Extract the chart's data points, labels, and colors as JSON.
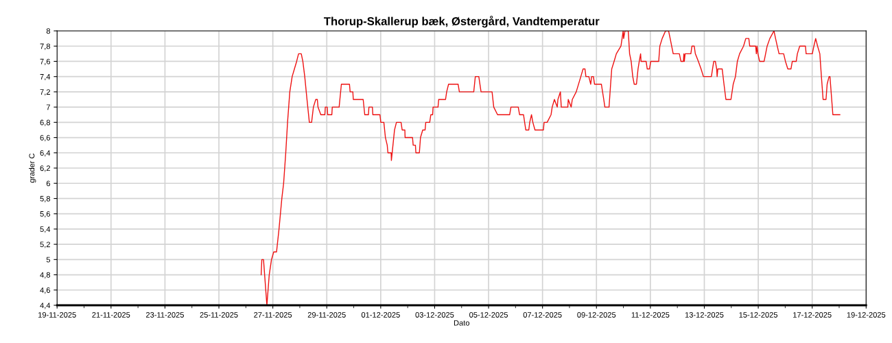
{
  "chart_data": {
    "type": "line",
    "title": "Thorup-Skallerup bæk, Østergård, Vandtemperatur",
    "xlabel": "Dato",
    "ylabel": "grader C",
    "x": [
      "2025-11-26T13:36",
      "2025-11-26T14:12",
      "2025-11-26T15:42",
      "2025-11-26T18:42",
      "2025-11-26T20:48",
      "2025-11-26T22:48",
      "2025-11-27T00:48",
      "2025-11-27T03:18",
      "2025-11-27T05:30",
      "2025-11-27T08:00",
      "2025-11-27T09:36",
      "2025-11-27T11:30",
      "2025-11-27T13:06",
      "2025-11-27T15:06",
      "2025-11-27T17:12",
      "2025-11-27T19:12",
      "2025-11-27T21:12",
      "2025-11-27T22:54",
      "2025-11-28T01:18",
      "2025-11-28T02:42",
      "2025-11-28T04:24",
      "2025-11-28T06:24",
      "2025-11-28T08:30",
      "2025-11-28T10:30",
      "2025-11-28T12:06",
      "2025-11-28T14:12",
      "2025-11-28T15:36",
      "2025-11-28T16:12",
      "2025-11-28T18:42",
      "2025-11-28T22:18",
      "2025-11-28T22:42",
      "2025-11-29T00:24",
      "2025-11-29T00:48",
      "2025-11-29T04:30",
      "2025-11-29T04:54",
      "2025-11-29T11:00",
      "2025-11-29T13:00",
      "2025-11-29T20:12",
      "2025-11-29T20:48",
      "2025-11-29T23:12",
      "2025-11-29T23:36",
      "2025-11-30T08:24",
      "2025-11-30T09:48",
      "2025-11-30T13:06",
      "2025-11-30T13:30",
      "2025-11-30T16:36",
      "2025-11-30T17:00",
      "2025-11-30T23:18",
      "2025-12-01T00:06",
      "2025-12-01T02:48",
      "2025-12-01T04:12",
      "2025-12-01T05:48",
      "2025-12-01T06:24",
      "2025-12-01T09:18",
      "2025-12-01T09:30",
      "2025-12-01T10:54",
      "2025-12-01T12:18",
      "2025-12-01T14:00",
      "2025-12-01T18:06",
      "2025-12-01T19:06",
      "2025-12-01T21:30",
      "2025-12-01T21:42",
      "2025-12-02T04:18",
      "2025-12-02T04:54",
      "2025-12-02T06:54",
      "2025-12-02T07:18",
      "2025-12-02T10:24",
      "2025-12-02T11:24",
      "2025-12-02T13:24",
      "2025-12-02T15:30",
      "2025-12-02T16:06",
      "2025-12-02T19:36",
      "2025-12-02T20:36",
      "2025-12-02T22:12",
      "2025-12-02T22:36",
      "2025-12-03T03:00",
      "2025-12-03T03:36",
      "2025-12-03T09:42",
      "2025-12-03T10:42",
      "2025-12-03T12:24",
      "2025-12-03T20:54",
      "2025-12-03T22:00",
      "2025-12-04T10:48",
      "2025-12-04T12:12",
      "2025-12-04T15:18",
      "2025-12-04T17:18",
      "2025-12-05T03:06",
      "2025-12-05T04:36",
      "2025-12-05T08:00",
      "2025-12-05T18:48",
      "2025-12-05T19:54",
      "2025-12-06T02:24",
      "2025-12-06T03:36",
      "2025-12-06T07:06",
      "2025-12-06T08:06",
      "2025-12-06T09:06",
      "2025-12-06T11:48",
      "2025-12-06T12:36",
      "2025-12-06T14:12",
      "2025-12-06T15:24",
      "2025-12-06T17:18",
      "2025-12-07T00:48",
      "2025-12-07T01:24",
      "2025-12-07T04:06",
      "2025-12-07T07:36",
      "2025-12-07T08:36",
      "2025-12-07T10:36",
      "2025-12-07T13:06",
      "2025-12-07T13:42",
      "2025-12-07T15:54",
      "2025-12-07T16:42",
      "2025-12-07T22:30",
      "2025-12-07T22:54",
      "2025-12-08T01:30",
      "2025-12-08T02:30",
      "2025-12-08T06:00",
      "2025-12-08T10:06",
      "2025-12-08T12:06",
      "2025-12-08T13:48",
      "2025-12-08T14:36",
      "2025-12-08T17:12",
      "2025-12-08T18:54",
      "2025-12-08T19:42",
      "2025-12-08T21:18",
      "2025-12-08T22:18",
      "2025-12-09T04:24",
      "2025-12-09T06:30",
      "2025-12-09T07:30",
      "2025-12-09T11:12",
      "2025-12-09T12:36",
      "2025-12-09T13:36",
      "2025-12-09T15:42",
      "2025-12-09T17:42",
      "2025-12-09T21:48",
      "2025-12-09T22:48",
      "2025-12-09T23:48",
      "2025-12-10T00:12",
      "2025-12-10T01:24",
      "2025-12-10T04:18",
      "2025-12-10T05:30",
      "2025-12-10T06:54",
      "2025-12-10T08:18",
      "2025-12-10T09:36",
      "2025-12-10T11:36",
      "2025-12-10T13:00",
      "2025-12-10T14:06",
      "2025-12-10T15:18",
      "2025-12-10T15:42",
      "2025-12-10T20:12",
      "2025-12-10T21:12",
      "2025-12-10T23:12",
      "2025-12-11T00:18",
      "2025-12-11T07:24",
      "2025-12-11T08:24",
      "2025-12-11T10:30",
      "2025-12-11T13:30",
      "2025-12-11T16:12",
      "2025-12-11T17:36",
      "2025-12-11T20:18",
      "2025-12-12T01:48",
      "2025-12-12T03:12",
      "2025-12-12T05:24",
      "2025-12-12T05:48",
      "2025-12-12T06:12",
      "2025-12-12T06:54",
      "2025-12-12T12:00",
      "2025-12-12T13:00",
      "2025-12-12T15:00",
      "2025-12-12T16:00",
      "2025-12-12T18:42",
      "2025-12-12T21:06",
      "2025-12-12T23:12",
      "2025-12-13T06:18",
      "2025-12-13T07:18",
      "2025-12-13T08:24",
      "2025-12-13T09:48",
      "2025-12-13T11:00",
      "2025-12-13T11:24",
      "2025-12-13T12:00",
      "2025-12-13T15:54",
      "2025-12-13T17:30",
      "2025-12-13T19:12",
      "2025-12-13T23:42",
      "2025-12-14T01:42",
      "2025-12-14T03:42",
      "2025-12-14T05:24",
      "2025-12-14T07:24",
      "2025-12-14T10:54",
      "2025-12-14T12:54",
      "2025-12-14T15:36",
      "2025-12-14T16:24",
      "2025-12-14T21:42",
      "2025-12-14T22:18",
      "2025-12-14T22:54",
      "2025-12-14T23:42",
      "2025-12-15T01:12",
      "2025-12-15T05:12",
      "2025-12-15T07:54",
      "2025-12-15T10:18",
      "2025-12-15T14:00",
      "2025-12-15T15:24",
      "2025-12-15T16:54",
      "2025-12-15T18:30",
      "2025-12-15T22:36",
      "2025-12-16T00:12",
      "2025-12-16T02:18",
      "2025-12-16T05:06",
      "2025-12-16T06:18",
      "2025-12-16T09:48",
      "2025-12-16T10:48",
      "2025-12-16T12:54",
      "2025-12-16T18:00",
      "2025-12-16T18:36",
      "2025-12-17T00:06",
      "2025-12-17T01:30",
      "2025-12-17T03:06",
      "2025-12-17T04:48",
      "2025-12-17T06:48",
      "2025-12-17T08:12",
      "2025-12-17T09:42",
      "2025-12-17T12:18",
      "2025-12-17T13:18",
      "2025-12-17T15:00",
      "2025-12-17T15:48",
      "2025-12-17T18:24",
      "2025-12-18T00:36"
    ],
    "series": [
      {
        "color": "#ee1111",
        "values": [
          4.8,
          5.0,
          5.0,
          4.4,
          4.8,
          5.0,
          5.1,
          5.1,
          5.4,
          5.8,
          6.0,
          6.4,
          6.8,
          7.2,
          7.4,
          7.5,
          7.6,
          7.7,
          7.7,
          7.6,
          7.4,
          7.1,
          6.8,
          6.8,
          7.0,
          7.1,
          7.1,
          7.0,
          6.9,
          6.9,
          7.0,
          7.0,
          6.9,
          6.9,
          7.0,
          7.0,
          7.3,
          7.3,
          7.2,
          7.2,
          7.1,
          7.1,
          6.9,
          6.9,
          7.0,
          7.0,
          6.9,
          6.9,
          6.8,
          6.8,
          6.6,
          6.5,
          6.4,
          6.4,
          6.3,
          6.5,
          6.7,
          6.8,
          6.8,
          6.7,
          6.7,
          6.6,
          6.6,
          6.5,
          6.5,
          6.4,
          6.4,
          6.6,
          6.7,
          6.7,
          6.8,
          6.8,
          6.9,
          6.9,
          7.0,
          7.0,
          7.1,
          7.1,
          7.2,
          7.3,
          7.3,
          7.2,
          7.2,
          7.4,
          7.4,
          7.2,
          7.2,
          7.0,
          6.9,
          6.9,
          7.0,
          7.0,
          6.9,
          6.9,
          6.8,
          6.7,
          6.7,
          6.8,
          6.9,
          6.8,
          6.7,
          6.7,
          6.8,
          6.8,
          6.9,
          7.0,
          7.1,
          7.0,
          7.1,
          7.2,
          7.0,
          7.0,
          7.1,
          7.0,
          7.1,
          7.2,
          7.4,
          7.5,
          7.5,
          7.4,
          7.4,
          7.3,
          7.4,
          7.4,
          7.3,
          7.3,
          7.1,
          7.0,
          7.0,
          7.3,
          7.5,
          7.6,
          7.7,
          7.8,
          7.9,
          8.0,
          7.9,
          8.0,
          8.0,
          7.7,
          7.6,
          7.4,
          7.3,
          7.3,
          7.5,
          7.6,
          7.7,
          7.6,
          7.6,
          7.5,
          7.5,
          7.6,
          7.6,
          7.8,
          7.9,
          8.0,
          8.0,
          7.9,
          7.7,
          7.7,
          7.6,
          7.6,
          7.7,
          7.6,
          7.7,
          7.7,
          7.8,
          7.8,
          7.7,
          7.6,
          7.5,
          7.4,
          7.4,
          7.5,
          7.6,
          7.6,
          7.5,
          7.4,
          7.5,
          7.5,
          7.3,
          7.1,
          7.1,
          7.3,
          7.4,
          7.6,
          7.7,
          7.8,
          7.9,
          7.9,
          7.8,
          7.8,
          7.7,
          7.8,
          7.7,
          7.6,
          7.6,
          7.8,
          7.9,
          8.0,
          7.9,
          7.8,
          7.7,
          7.7,
          7.6,
          7.5,
          7.5,
          7.6,
          7.6,
          7.7,
          7.8,
          7.8,
          7.7,
          7.7,
          7.8,
          7.9,
          7.8,
          7.7,
          7.4,
          7.1,
          7.1,
          7.3,
          7.4,
          7.4,
          6.9,
          6.9
        ]
      }
    ],
    "xlim": [
      "2025-11-19",
      "2025-12-19"
    ],
    "xticks": [
      {
        "value": "2025-11-19",
        "label": "19-11-2025"
      },
      {
        "value": "2025-11-21",
        "label": "21-11-2025"
      },
      {
        "value": "2025-11-23",
        "label": "23-11-2025"
      },
      {
        "value": "2025-11-25",
        "label": "25-11-2025"
      },
      {
        "value": "2025-11-27",
        "label": "27-11-2025"
      },
      {
        "value": "2025-11-29",
        "label": "29-11-2025"
      },
      {
        "value": "2025-12-01",
        "label": "01-12-2025"
      },
      {
        "value": "2025-12-03",
        "label": "03-12-2025"
      },
      {
        "value": "2025-12-05",
        "label": "05-12-2025"
      },
      {
        "value": "2025-12-07",
        "label": "07-12-2025"
      },
      {
        "value": "2025-12-09",
        "label": "09-12-2025"
      },
      {
        "value": "2025-12-11",
        "label": "11-12-2025"
      },
      {
        "value": "2025-12-13",
        "label": "13-12-2025"
      },
      {
        "value": "2025-12-15",
        "label": "15-12-2025"
      },
      {
        "value": "2025-12-17",
        "label": "17-12-2025"
      },
      {
        "value": "2025-12-19",
        "label": "19-12-2025"
      }
    ],
    "ylim": [
      4.4,
      8
    ],
    "yticks": [
      {
        "value": 4.4,
        "label": "4,4"
      },
      {
        "value": 4.6,
        "label": "4,6"
      },
      {
        "value": 4.8,
        "label": "4,8"
      },
      5,
      {
        "value": 5.2,
        "label": "5,2"
      },
      {
        "value": 5.4,
        "label": "5,4"
      },
      {
        "value": 5.6,
        "label": "5,6"
      },
      {
        "value": 5.8,
        "label": "5,8"
      },
      6,
      {
        "value": 6.2,
        "label": "6,2"
      },
      {
        "value": 6.4,
        "label": "6,4"
      },
      {
        "value": 6.6,
        "label": "6,6"
      },
      {
        "value": 6.8,
        "label": "6,8"
      },
      7,
      {
        "value": 7.2,
        "label": "7,2"
      },
      {
        "value": 7.4,
        "label": "7,4"
      },
      {
        "value": 7.6,
        "label": "7,6"
      },
      {
        "value": 7.8,
        "label": "7,8"
      },
      8
    ],
    "grid": true
  }
}
